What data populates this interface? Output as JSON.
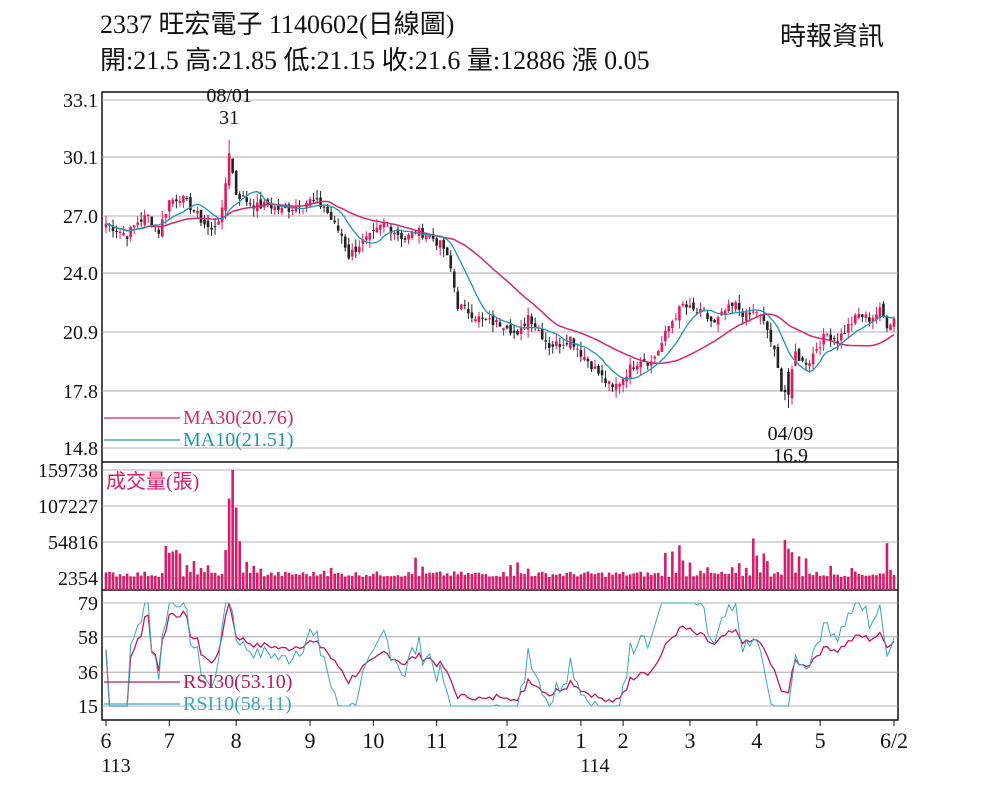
{
  "header": {
    "title": "2337  旺宏電子 1140602(日線圖)",
    "ohlc": "開:21.5 高:21.85 低:21.15 收:21.6 量:12886 漲 0.05",
    "source": "時報資訊"
  },
  "colors": {
    "up": "#e8175d",
    "down": "#222222",
    "ma30": "#d6286e",
    "ma10": "#1f97b3",
    "rsi30": "#c0185f",
    "rsi10": "#3aa6c2",
    "volume": "#d81b6a",
    "grid": "#9a9a9a"
  },
  "chart_data": [
    {
      "type": "candlestick",
      "name": "price",
      "y_ticks": [
        "33.1",
        "30.1",
        "27.0",
        "24.0",
        "20.9",
        "17.8",
        "14.8"
      ],
      "ylim": [
        14.8,
        33.1
      ],
      "annotations": {
        "high": {
          "date": "08/01",
          "value": "31"
        },
        "low": {
          "date": "04/09",
          "value": "16.9"
        }
      },
      "legend": [
        {
          "key": "ma30",
          "label": "MA30(20.76)"
        },
        {
          "key": "ma10",
          "label": "MA10(21.51)"
        }
      ],
      "close_anchors": [
        [
          0,
          26.6
        ],
        [
          3,
          26.3
        ],
        [
          6,
          26.0
        ],
        [
          9,
          26.7
        ],
        [
          12,
          27.0
        ],
        [
          15,
          26.2
        ],
        [
          18,
          27.8
        ],
        [
          21,
          28.0
        ],
        [
          24,
          27.5
        ],
        [
          27,
          26.8
        ],
        [
          30,
          26.2
        ],
        [
          33,
          27.2
        ],
        [
          35,
          30.3
        ],
        [
          37,
          28.2
        ],
        [
          40,
          27.8
        ],
        [
          43,
          27.5
        ],
        [
          46,
          27.6
        ],
        [
          50,
          27.3
        ],
        [
          54,
          27.5
        ],
        [
          58,
          27.8
        ],
        [
          62,
          27.5
        ],
        [
          65,
          26.5
        ],
        [
          67,
          26.0
        ],
        [
          69,
          24.9
        ],
        [
          72,
          25.5
        ],
        [
          76,
          26.0
        ],
        [
          79,
          26.6
        ],
        [
          82,
          26.2
        ],
        [
          85,
          25.8
        ],
        [
          88,
          26.2
        ],
        [
          92,
          26.0
        ],
        [
          96,
          25.3
        ],
        [
          98,
          24.2
        ],
        [
          100,
          22.3
        ],
        [
          103,
          22.0
        ],
        [
          107,
          21.5
        ],
        [
          110,
          21.4
        ],
        [
          114,
          21.3
        ],
        [
          117,
          20.6
        ],
        [
          120,
          21.8
        ],
        [
          123,
          21.0
        ],
        [
          126,
          20.2
        ],
        [
          129,
          20.3
        ],
        [
          132,
          20.6
        ],
        [
          135,
          19.8
        ],
        [
          138,
          19.2
        ],
        [
          141,
          18.5
        ],
        [
          144,
          17.9
        ],
        [
          146,
          18.3
        ],
        [
          149,
          19.0
        ],
        [
          152,
          19.5
        ],
        [
          155,
          19.3
        ],
        [
          158,
          20.3
        ],
        [
          160,
          21.2
        ],
        [
          162,
          21.8
        ],
        [
          164,
          22.3
        ],
        [
          167,
          22.0
        ],
        [
          170,
          21.8
        ],
        [
          173,
          21.3
        ],
        [
          176,
          22.0
        ],
        [
          179,
          22.3
        ],
        [
          182,
          21.7
        ],
        [
          185,
          22.0
        ],
        [
          188,
          21.0
        ],
        [
          190,
          19.8
        ],
        [
          192,
          18.0
        ],
        [
          194,
          17.6
        ],
        [
          196,
          19.8
        ],
        [
          198,
          19.3
        ],
        [
          200,
          19.4
        ],
        [
          202,
          20.1
        ],
        [
          205,
          20.8
        ],
        [
          208,
          20.5
        ],
        [
          211,
          21.2
        ],
        [
          214,
          21.8
        ],
        [
          217,
          21.6
        ],
        [
          220,
          22.0
        ],
        [
          222,
          21.3
        ],
        [
          224,
          21.6
        ]
      ],
      "n_days": 225
    },
    {
      "type": "bar",
      "name": "volume",
      "title": "成交量(張)",
      "y_ticks": [
        "159738",
        "107227",
        "54816",
        "2354"
      ],
      "ylim": [
        2354,
        159738
      ],
      "spikes": [
        [
          17,
          49000
        ],
        [
          18,
          39000
        ],
        [
          19,
          41000
        ],
        [
          20,
          43000
        ],
        [
          21,
          38000
        ],
        [
          23,
          21000
        ],
        [
          25,
          27000
        ],
        [
          27,
          17000
        ],
        [
          29,
          21000
        ],
        [
          31,
          10000
        ],
        [
          34,
          43000
        ],
        [
          35,
          118000
        ],
        [
          36,
          159738
        ],
        [
          37,
          105000
        ],
        [
          38,
          56000
        ],
        [
          40,
          26000
        ],
        [
          42,
          20000
        ],
        [
          44,
          16000
        ],
        [
          62,
          13000
        ],
        [
          64,
          17000
        ],
        [
          88,
          32000
        ],
        [
          90,
          19000
        ],
        [
          115,
          21000
        ],
        [
          117,
          25000
        ],
        [
          120,
          16000
        ],
        [
          159,
          39000
        ],
        [
          161,
          41000
        ],
        [
          163,
          50000
        ],
        [
          164,
          28000
        ],
        [
          166,
          25000
        ],
        [
          169,
          13000
        ],
        [
          171,
          18000
        ],
        [
          178,
          18000
        ],
        [
          180,
          24000
        ],
        [
          182,
          17000
        ],
        [
          184,
          60000
        ],
        [
          185,
          35000
        ],
        [
          187,
          38000
        ],
        [
          188,
          27000
        ],
        [
          193,
          58000
        ],
        [
          194,
          45000
        ],
        [
          195,
          40000
        ],
        [
          197,
          34000
        ],
        [
          199,
          31000
        ],
        [
          206,
          20000
        ],
        [
          212,
          17000
        ],
        [
          222,
          53000
        ],
        [
          223,
          14000
        ]
      ],
      "base_volume": 8000
    },
    {
      "type": "line",
      "name": "rsi",
      "y_ticks": [
        "79",
        "58",
        "36",
        "15"
      ],
      "ylim": [
        15,
        79
      ],
      "legend": [
        {
          "key": "rsi30",
          "label": "RSI30(53.10)"
        },
        {
          "key": "rsi10",
          "label": "RSI10(58.11)"
        }
      ]
    }
  ],
  "x_axis": {
    "ticks": [
      {
        "day": 0,
        "label": "6",
        "year": "113"
      },
      {
        "day": 18,
        "label": "7"
      },
      {
        "day": 37,
        "label": "8"
      },
      {
        "day": 58,
        "label": "9"
      },
      {
        "day": 76,
        "label": "10"
      },
      {
        "day": 94,
        "label": "11"
      },
      {
        "day": 114,
        "label": "12"
      },
      {
        "day": 135,
        "label": "1",
        "year": "114"
      },
      {
        "day": 147,
        "label": "2"
      },
      {
        "day": 166,
        "label": "3"
      },
      {
        "day": 185,
        "label": "4"
      },
      {
        "day": 203,
        "label": "5"
      },
      {
        "day": 224,
        "label": "6/2"
      }
    ]
  }
}
